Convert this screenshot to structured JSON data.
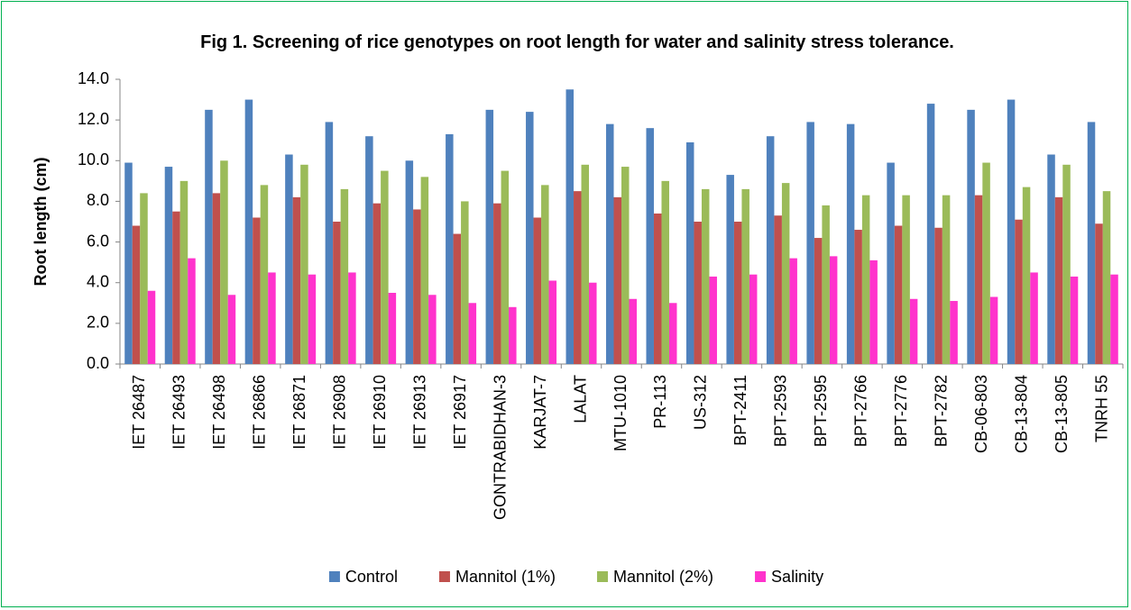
{
  "chart_data": {
    "type": "bar",
    "title": "Fig 1. Screening of rice genotypes on root length for water and salinity stress tolerance.",
    "y_label": "Root length (cm)",
    "categories": [
      "IET 26487",
      "IET 26493",
      "IET 26498",
      "IET 26866",
      "IET 26871",
      "IET 26908",
      "IET 26910",
      "IET 26913",
      "IET 26917",
      "GONTRABIDHAN-3",
      "KARJAT-7",
      "LALAT",
      "MTU-1010",
      "PR-113",
      "US-312",
      "BPT-2411",
      "BPT-2593",
      "BPT-2595",
      "BPT-2766",
      "BPT-2776",
      "BPT-2782",
      "CB-06-803",
      "CB-13-804",
      "CB-13-805",
      "TNRH 55"
    ],
    "series": [
      {
        "name": "Control",
        "color": "#4f81bd",
        "values": [
          9.9,
          9.7,
          12.5,
          13.0,
          10.3,
          11.9,
          11.2,
          10.0,
          11.3,
          12.5,
          12.4,
          13.5,
          11.8,
          11.6,
          10.9,
          9.3,
          11.2,
          11.9,
          11.8,
          9.9,
          12.8,
          12.5,
          13.0,
          10.3,
          11.9
        ]
      },
      {
        "name": "Mannitol (1%)",
        "color": "#c0504d",
        "values": [
          6.8,
          7.5,
          8.4,
          7.2,
          8.2,
          7.0,
          7.9,
          7.6,
          6.4,
          7.9,
          7.2,
          8.5,
          8.2,
          7.4,
          7.0,
          7.0,
          7.3,
          6.2,
          6.6,
          6.8,
          6.7,
          8.3,
          7.1,
          8.2,
          6.9
        ]
      },
      {
        "name": "Mannitol (2%)",
        "color": "#9bbb59",
        "values": [
          8.4,
          9.0,
          10.0,
          8.8,
          9.8,
          8.6,
          9.5,
          9.2,
          8.0,
          9.5,
          8.8,
          9.8,
          9.7,
          9.0,
          8.6,
          8.6,
          8.9,
          7.8,
          8.3,
          8.3,
          8.3,
          9.9,
          8.7,
          9.8,
          8.5
        ]
      },
      {
        "name": "Salinity",
        "color": "#ff33cc",
        "values": [
          3.6,
          5.2,
          3.4,
          4.5,
          4.4,
          4.5,
          3.5,
          3.4,
          3.0,
          2.8,
          4.1,
          4.0,
          3.2,
          3.0,
          4.3,
          4.4,
          5.2,
          5.3,
          5.1,
          3.2,
          3.1,
          3.3,
          4.5,
          4.3,
          4.4
        ]
      }
    ],
    "ylim": [
      0,
      14
    ],
    "yticks": [
      {
        "value": 0,
        "label": "0.0"
      },
      {
        "value": 2,
        "label": "2.0"
      },
      {
        "value": 4,
        "label": "4.0"
      },
      {
        "value": 6,
        "label": "6.0"
      },
      {
        "value": 8,
        "label": "8.0"
      },
      {
        "value": 10,
        "label": "10.0"
      },
      {
        "value": 12,
        "label": "12.0"
      },
      {
        "value": 14,
        "label": "14.0"
      }
    ],
    "grid": false,
    "legend": "bottom"
  }
}
